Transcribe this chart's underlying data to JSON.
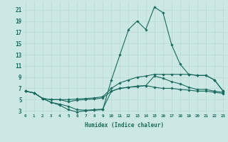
{
  "xlabel": "Humidex (Indice chaleur)",
  "bg_color": "#cce8e4",
  "grid_color": "#b8d8d4",
  "line_color": "#1a6b5e",
  "x_ticks": [
    0,
    1,
    2,
    3,
    4,
    5,
    6,
    7,
    8,
    9,
    10,
    11,
    12,
    13,
    14,
    15,
    16,
    17,
    18,
    19,
    20,
    21,
    22,
    23
  ],
  "y_ticks": [
    3,
    5,
    7,
    9,
    11,
    13,
    15,
    17,
    19,
    21
  ],
  "xlim": [
    -0.3,
    23.3
  ],
  "ylim": [
    2.5,
    22.5
  ],
  "lines": [
    {
      "x": [
        0,
        1,
        2,
        3,
        4,
        5,
        6,
        7,
        8,
        9,
        10,
        11,
        12,
        13,
        14,
        15,
        16,
        17,
        18,
        19,
        20,
        21,
        22,
        23
      ],
      "y": [
        6.5,
        6.2,
        5.2,
        4.5,
        4.0,
        3.2,
        2.8,
        3.0,
        3.1,
        3.2,
        8.5,
        13.0,
        17.5,
        19.0,
        17.5,
        21.5,
        20.5,
        14.8,
        11.3,
        9.5,
        9.3,
        9.3,
        8.5,
        6.5
      ]
    },
    {
      "x": [
        0,
        1,
        2,
        3,
        4,
        5,
        6,
        7,
        8,
        9,
        10,
        11,
        12,
        13,
        14,
        15,
        16,
        17,
        18,
        19,
        20,
        21,
        22,
        23
      ],
      "y": [
        6.5,
        6.2,
        5.2,
        5.0,
        5.0,
        5.0,
        5.1,
        5.2,
        5.3,
        5.5,
        7.0,
        8.0,
        8.5,
        9.0,
        9.2,
        9.5,
        9.5,
        9.5,
        9.5,
        9.5,
        9.3,
        9.3,
        8.5,
        6.5
      ]
    },
    {
      "x": [
        0,
        1,
        2,
        3,
        4,
        5,
        6,
        7,
        8,
        9,
        10,
        11,
        12,
        13,
        14,
        15,
        16,
        17,
        18,
        19,
        20,
        21,
        22,
        23
      ],
      "y": [
        6.5,
        6.2,
        5.2,
        5.0,
        5.0,
        4.6,
        4.9,
        5.0,
        5.1,
        5.3,
        6.5,
        7.0,
        7.2,
        7.3,
        7.5,
        9.2,
        8.8,
        8.2,
        7.8,
        7.2,
        6.8,
        6.8,
        6.5,
        6.3
      ]
    },
    {
      "x": [
        0,
        1,
        2,
        3,
        4,
        5,
        6,
        7,
        8,
        9,
        10,
        11,
        12,
        13,
        14,
        15,
        16,
        17,
        18,
        19,
        20,
        21,
        22,
        23
      ],
      "y": [
        6.5,
        6.2,
        5.2,
        4.5,
        4.2,
        3.8,
        3.2,
        3.1,
        3.2,
        3.3,
        6.5,
        7.0,
        7.2,
        7.4,
        7.5,
        7.2,
        7.0,
        7.0,
        6.8,
        6.7,
        6.5,
        6.5,
        6.3,
        6.1
      ]
    }
  ]
}
